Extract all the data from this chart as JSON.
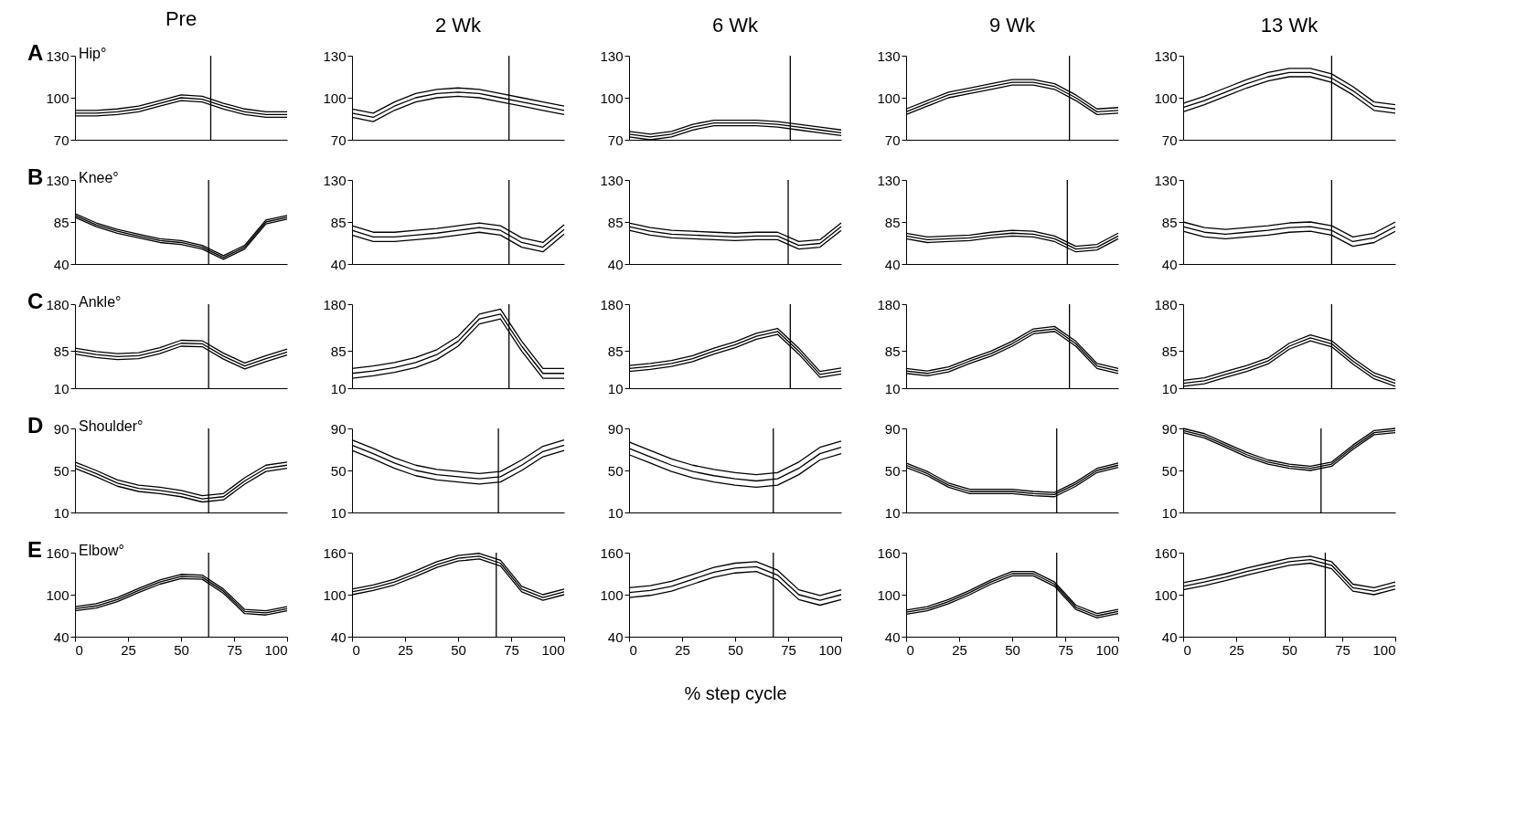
{
  "chart_data": [
    {
      "type": "line",
      "title": "Pre",
      "annotations": [
        "A",
        "Hip°"
      ],
      "xlim": [
        0,
        100
      ],
      "xticks": [
        0,
        25,
        50,
        75,
        100
      ],
      "ylim": [
        70,
        130
      ],
      "yticks": [
        70,
        100,
        130
      ],
      "tick_labels": "y",
      "ref_lines": [
        {
          "axis": "x",
          "value": 64,
          "color": "#000000"
        }
      ],
      "x": [
        0,
        10,
        20,
        30,
        40,
        50,
        60,
        70,
        80,
        90,
        100
      ],
      "series": [
        {
          "color": "#000000",
          "values": [
            91,
            91,
            92,
            94,
            98,
            102,
            101,
            96,
            92,
            90,
            90
          ]
        },
        {
          "color": "#000000",
          "values": [
            89,
            89,
            90,
            92,
            96,
            100,
            99,
            94,
            90,
            88,
            88
          ]
        },
        {
          "color": "#000000",
          "values": [
            87,
            87,
            88,
            90,
            94,
            98,
            97,
            92,
            88,
            86,
            86
          ]
        }
      ]
    },
    {
      "type": "line",
      "title": "2 Wk",
      "xlim": [
        0,
        100
      ],
      "xticks": [
        0,
        25,
        50,
        75,
        100
      ],
      "ylim": [
        70,
        130
      ],
      "yticks": [
        70,
        100,
        130
      ],
      "tick_labels": "y",
      "ref_lines": [
        {
          "axis": "x",
          "value": 74,
          "color": "#000000"
        }
      ],
      "x": [
        0,
        10,
        20,
        30,
        40,
        50,
        60,
        70,
        80,
        90,
        100
      ],
      "series": [
        {
          "color": "#000000",
          "values": [
            92,
            89,
            97,
            103,
            106,
            107,
            106,
            103,
            100,
            97,
            94
          ]
        },
        {
          "color": "#000000",
          "values": [
            89,
            86,
            94,
            100,
            103,
            104,
            103,
            100,
            97,
            94,
            91
          ]
        },
        {
          "color": "#000000",
          "values": [
            86,
            83,
            91,
            97,
            100,
            101,
            100,
            97,
            94,
            91,
            88
          ]
        }
      ]
    },
    {
      "type": "line",
      "title": "6 Wk",
      "xlim": [
        0,
        100
      ],
      "xticks": [
        0,
        25,
        50,
        75,
        100
      ],
      "ylim": [
        70,
        130
      ],
      "yticks": [
        70,
        100,
        130
      ],
      "tick_labels": "y",
      "ref_lines": [
        {
          "axis": "x",
          "value": 76,
          "color": "#000000"
        }
      ],
      "x": [
        0,
        10,
        20,
        30,
        40,
        50,
        60,
        70,
        80,
        90,
        100
      ],
      "series": [
        {
          "color": "#000000",
          "values": [
            76,
            74,
            76,
            81,
            84,
            84,
            84,
            83,
            81,
            79,
            77
          ]
        },
        {
          "color": "#000000",
          "values": [
            74,
            72,
            74,
            79,
            82,
            82,
            82,
            81,
            79,
            77,
            75
          ]
        },
        {
          "color": "#000000",
          "values": [
            72,
            70,
            72,
            77,
            80,
            80,
            80,
            79,
            77,
            75,
            73
          ]
        }
      ]
    },
    {
      "type": "line",
      "title": "9 Wk",
      "xlim": [
        0,
        100
      ],
      "xticks": [
        0,
        25,
        50,
        75,
        100
      ],
      "ylim": [
        70,
        130
      ],
      "yticks": [
        70,
        100,
        130
      ],
      "tick_labels": "y",
      "ref_lines": [
        {
          "axis": "x",
          "value": 77,
          "color": "#000000"
        }
      ],
      "x": [
        0,
        10,
        20,
        30,
        40,
        50,
        60,
        70,
        80,
        90,
        100
      ],
      "series": [
        {
          "color": "#000000",
          "values": [
            92,
            98,
            104,
            107,
            110,
            113,
            113,
            110,
            102,
            92,
            93
          ]
        },
        {
          "color": "#000000",
          "values": [
            90,
            96,
            102,
            105,
            108,
            111,
            111,
            108,
            100,
            90,
            91
          ]
        },
        {
          "color": "#000000",
          "values": [
            88,
            94,
            100,
            103,
            106,
            109,
            109,
            106,
            98,
            88,
            89
          ]
        }
      ]
    },
    {
      "type": "line",
      "title": "13 Wk",
      "xlim": [
        0,
        100
      ],
      "xticks": [
        0,
        25,
        50,
        75,
        100
      ],
      "ylim": [
        70,
        130
      ],
      "yticks": [
        70,
        100,
        130
      ],
      "tick_labels": "y",
      "ref_lines": [
        {
          "axis": "x",
          "value": 70,
          "color": "#000000"
        }
      ],
      "x": [
        0,
        10,
        20,
        30,
        40,
        50,
        60,
        70,
        80,
        90,
        100
      ],
      "series": [
        {
          "color": "#000000",
          "values": [
            96,
            101,
            107,
            113,
            118,
            121,
            121,
            117,
            108,
            97,
            95
          ]
        },
        {
          "color": "#000000",
          "values": [
            93,
            98,
            104,
            110,
            115,
            118,
            118,
            114,
            105,
            94,
            92
          ]
        },
        {
          "color": "#000000",
          "values": [
            90,
            95,
            101,
            107,
            112,
            115,
            115,
            111,
            102,
            91,
            89
          ]
        }
      ]
    },
    {
      "type": "line",
      "annotations": [
        "B",
        "Knee°"
      ],
      "xlim": [
        0,
        100
      ],
      "xticks": [
        0,
        25,
        50,
        75,
        100
      ],
      "ylim": [
        40,
        130
      ],
      "yticks": [
        40,
        85,
        130
      ],
      "tick_labels": "y",
      "ref_lines": [
        {
          "axis": "x",
          "value": 63,
          "color": "#000000"
        }
      ],
      "x": [
        0,
        10,
        20,
        30,
        40,
        50,
        60,
        70,
        80,
        90,
        100
      ],
      "series": [
        {
          "color": "#000000",
          "values": [
            94,
            84,
            77,
            72,
            67,
            65,
            60,
            49,
            60,
            87,
            92
          ]
        },
        {
          "color": "#000000",
          "values": [
            92,
            82,
            75,
            70,
            65,
            63,
            58,
            47,
            58,
            85,
            90
          ]
        },
        {
          "color": "#000000",
          "values": [
            90,
            80,
            73,
            68,
            63,
            61,
            56,
            45,
            56,
            83,
            88
          ]
        }
      ]
    },
    {
      "type": "line",
      "xlim": [
        0,
        100
      ],
      "xticks": [
        0,
        25,
        50,
        75,
        100
      ],
      "ylim": [
        40,
        130
      ],
      "yticks": [
        40,
        85,
        130
      ],
      "tick_labels": "y",
      "ref_lines": [
        {
          "axis": "x",
          "value": 74,
          "color": "#000000"
        }
      ],
      "x": [
        0,
        10,
        20,
        30,
        40,
        50,
        60,
        70,
        80,
        90,
        100
      ],
      "series": [
        {
          "color": "#000000",
          "values": [
            81,
            74,
            74,
            76,
            78,
            81,
            84,
            81,
            68,
            63,
            82
          ]
        },
        {
          "color": "#000000",
          "values": [
            76,
            69,
            69,
            71,
            73,
            76,
            79,
            76,
            63,
            58,
            77
          ]
        },
        {
          "color": "#000000",
          "values": [
            71,
            64,
            64,
            66,
            68,
            71,
            74,
            71,
            58,
            53,
            72
          ]
        }
      ]
    },
    {
      "type": "line",
      "xlim": [
        0,
        100
      ],
      "xticks": [
        0,
        25,
        50,
        75,
        100
      ],
      "ylim": [
        40,
        130
      ],
      "yticks": [
        40,
        85,
        130
      ],
      "tick_labels": "y",
      "ref_lines": [
        {
          "axis": "x",
          "value": 75,
          "color": "#000000"
        }
      ],
      "x": [
        0,
        10,
        20,
        30,
        40,
        50,
        60,
        70,
        80,
        90,
        100
      ],
      "series": [
        {
          "color": "#000000",
          "values": [
            84,
            79,
            76,
            75,
            74,
            73,
            74,
            74,
            64,
            66,
            84
          ]
        },
        {
          "color": "#000000",
          "values": [
            80,
            75,
            72,
            71,
            70,
            69,
            70,
            70,
            60,
            62,
            80
          ]
        },
        {
          "color": "#000000",
          "values": [
            76,
            71,
            68,
            67,
            66,
            65,
            66,
            66,
            56,
            58,
            76
          ]
        }
      ]
    },
    {
      "type": "line",
      "xlim": [
        0,
        100
      ],
      "xticks": [
        0,
        25,
        50,
        75,
        100
      ],
      "ylim": [
        40,
        130
      ],
      "yticks": [
        40,
        85,
        130
      ],
      "tick_labels": "y",
      "ref_lines": [
        {
          "axis": "x",
          "value": 76,
          "color": "#000000"
        }
      ],
      "x": [
        0,
        10,
        20,
        30,
        40,
        50,
        60,
        70,
        80,
        90,
        100
      ],
      "series": [
        {
          "color": "#000000",
          "values": [
            73,
            69,
            70,
            71,
            74,
            76,
            75,
            70,
            59,
            61,
            73
          ]
        },
        {
          "color": "#000000",
          "values": [
            70,
            66,
            67,
            68,
            71,
            73,
            72,
            67,
            56,
            58,
            70
          ]
        },
        {
          "color": "#000000",
          "values": [
            67,
            63,
            64,
            65,
            68,
            70,
            69,
            64,
            53,
            55,
            67
          ]
        }
      ]
    },
    {
      "type": "line",
      "xlim": [
        0,
        100
      ],
      "xticks": [
        0,
        25,
        50,
        75,
        100
      ],
      "ylim": [
        40,
        130
      ],
      "yticks": [
        40,
        85,
        130
      ],
      "tick_labels": "y",
      "ref_lines": [
        {
          "axis": "x",
          "value": 70,
          "color": "#000000"
        }
      ],
      "x": [
        0,
        10,
        20,
        30,
        40,
        50,
        60,
        70,
        80,
        90,
        100
      ],
      "series": [
        {
          "color": "#000000",
          "values": [
            85,
            79,
            77,
            79,
            81,
            84,
            85,
            81,
            69,
            73,
            85
          ]
        },
        {
          "color": "#000000",
          "values": [
            80,
            74,
            72,
            74,
            76,
            79,
            80,
            76,
            64,
            68,
            80
          ]
        },
        {
          "color": "#000000",
          "values": [
            75,
            69,
            67,
            69,
            71,
            74,
            75,
            71,
            59,
            63,
            75
          ]
        }
      ]
    },
    {
      "type": "line",
      "annotations": [
        "C",
        "Ankle°"
      ],
      "xlim": [
        0,
        100
      ],
      "xticks": [
        0,
        25,
        50,
        75,
        100
      ],
      "ylim": [
        10,
        180
      ],
      "yticks": [
        10,
        85,
        180
      ],
      "tick_labels": "y",
      "ref_lines": [
        {
          "axis": "x",
          "value": 63,
          "color": "#000000"
        }
      ],
      "x": [
        0,
        10,
        20,
        30,
        40,
        50,
        60,
        70,
        80,
        90,
        100
      ],
      "series": [
        {
          "color": "#000000",
          "values": [
            91,
            84,
            80,
            82,
            92,
            107,
            106,
            81,
            61,
            76,
            89
          ]
        },
        {
          "color": "#000000",
          "values": [
            85,
            78,
            74,
            76,
            86,
            101,
            100,
            75,
            55,
            70,
            83
          ]
        },
        {
          "color": "#000000",
          "values": [
            79,
            72,
            68,
            70,
            80,
            95,
            94,
            69,
            49,
            64,
            77
          ]
        }
      ]
    },
    {
      "type": "line",
      "xlim": [
        0,
        100
      ],
      "xticks": [
        0,
        25,
        50,
        75,
        100
      ],
      "ylim": [
        10,
        180
      ],
      "yticks": [
        10,
        85,
        180
      ],
      "tick_labels": "y",
      "ref_lines": [
        {
          "axis": "x",
          "value": 74,
          "color": "#000000"
        }
      ],
      "x": [
        0,
        10,
        20,
        30,
        40,
        50,
        60,
        70,
        80,
        90,
        100
      ],
      "series": [
        {
          "color": "#000000",
          "values": [
            50,
            55,
            62,
            72,
            88,
            115,
            160,
            170,
            105,
            50,
            50
          ]
        },
        {
          "color": "#000000",
          "values": [
            40,
            45,
            52,
            62,
            78,
            105,
            150,
            160,
            95,
            40,
            40
          ]
        },
        {
          "color": "#000000",
          "values": [
            30,
            35,
            42,
            52,
            68,
            95,
            140,
            150,
            85,
            30,
            30
          ]
        }
      ]
    },
    {
      "type": "line",
      "xlim": [
        0,
        100
      ],
      "xticks": [
        0,
        25,
        50,
        75,
        100
      ],
      "ylim": [
        10,
        180
      ],
      "yticks": [
        10,
        85,
        180
      ],
      "tick_labels": "y",
      "ref_lines": [
        {
          "axis": "x",
          "value": 76,
          "color": "#000000"
        }
      ],
      "x": [
        0,
        10,
        20,
        30,
        40,
        50,
        60,
        70,
        80,
        90,
        100
      ],
      "series": [
        {
          "color": "#000000",
          "values": [
            56,
            60,
            66,
            76,
            91,
            104,
            121,
            131,
            91,
            44,
            51
          ]
        },
        {
          "color": "#000000",
          "values": [
            50,
            54,
            60,
            70,
            85,
            98,
            115,
            125,
            85,
            38,
            45
          ]
        },
        {
          "color": "#000000",
          "values": [
            44,
            48,
            54,
            64,
            79,
            92,
            109,
            119,
            79,
            32,
            39
          ]
        }
      ]
    },
    {
      "type": "line",
      "xlim": [
        0,
        100
      ],
      "xticks": [
        0,
        25,
        50,
        75,
        100
      ],
      "ylim": [
        10,
        180
      ],
      "yticks": [
        10,
        85,
        180
      ],
      "tick_labels": "y",
      "ref_lines": [
        {
          "axis": "x",
          "value": 77,
          "color": "#000000"
        }
      ],
      "x": [
        0,
        10,
        20,
        30,
        40,
        50,
        60,
        70,
        80,
        90,
        100
      ],
      "series": [
        {
          "color": "#000000",
          "values": [
            50,
            45,
            53,
            70,
            85,
            105,
            130,
            135,
            105,
            60,
            50
          ]
        },
        {
          "color": "#000000",
          "values": [
            45,
            40,
            48,
            65,
            80,
            100,
            125,
            130,
            100,
            55,
            45
          ]
        },
        {
          "color": "#000000",
          "values": [
            40,
            35,
            43,
            60,
            75,
            95,
            120,
            125,
            95,
            50,
            40
          ]
        }
      ]
    },
    {
      "type": "line",
      "xlim": [
        0,
        100
      ],
      "xticks": [
        0,
        25,
        50,
        75,
        100
      ],
      "ylim": [
        10,
        180
      ],
      "yticks": [
        10,
        85,
        180
      ],
      "tick_labels": "y",
      "ref_lines": [
        {
          "axis": "x",
          "value": 70,
          "color": "#000000"
        }
      ],
      "x": [
        0,
        10,
        20,
        30,
        40,
        50,
        60,
        70,
        80,
        90,
        100
      ],
      "series": [
        {
          "color": "#000000",
          "values": [
            26,
            31,
            44,
            56,
            71,
            101,
            118,
            106,
            71,
            41,
            26
          ]
        },
        {
          "color": "#000000",
          "values": [
            20,
            25,
            38,
            50,
            65,
            95,
            112,
            100,
            65,
            35,
            20
          ]
        },
        {
          "color": "#000000",
          "values": [
            14,
            19,
            32,
            44,
            59,
            89,
            106,
            94,
            59,
            29,
            14
          ]
        }
      ]
    },
    {
      "type": "line",
      "annotations": [
        "D",
        "Shoulder°"
      ],
      "xlim": [
        0,
        100
      ],
      "xticks": [
        0,
        25,
        50,
        75,
        100
      ],
      "ylim": [
        10,
        90
      ],
      "yticks": [
        10,
        50,
        90
      ],
      "tick_labels": "y",
      "ref_lines": [
        {
          "axis": "x",
          "value": 63,
          "color": "#000000"
        }
      ],
      "x": [
        0,
        10,
        20,
        30,
        40,
        50,
        60,
        70,
        80,
        90,
        100
      ],
      "series": [
        {
          "color": "#000000",
          "values": [
            58,
            50,
            41,
            36,
            34,
            31,
            26,
            28,
            43,
            55,
            58
          ]
        },
        {
          "color": "#000000",
          "values": [
            55,
            47,
            38,
            33,
            31,
            28,
            23,
            25,
            40,
            52,
            55
          ]
        },
        {
          "color": "#000000",
          "values": [
            52,
            44,
            35,
            30,
            28,
            25,
            20,
            22,
            37,
            49,
            52
          ]
        }
      ]
    },
    {
      "type": "line",
      "xlim": [
        0,
        100
      ],
      "xticks": [
        0,
        25,
        50,
        75,
        100
      ],
      "ylim": [
        10,
        90
      ],
      "yticks": [
        10,
        50,
        90
      ],
      "tick_labels": "y",
      "ref_lines": [
        {
          "axis": "x",
          "value": 69,
          "color": "#000000"
        }
      ],
      "x": [
        0,
        10,
        20,
        30,
        40,
        50,
        60,
        70,
        80,
        90,
        100
      ],
      "series": [
        {
          "color": "#000000",
          "values": [
            79,
            71,
            62,
            55,
            51,
            49,
            47,
            49,
            60,
            73,
            79
          ]
        },
        {
          "color": "#000000",
          "values": [
            74,
            66,
            57,
            50,
            46,
            44,
            42,
            44,
            55,
            68,
            74
          ]
        },
        {
          "color": "#000000",
          "values": [
            69,
            61,
            52,
            45,
            41,
            39,
            37,
            39,
            50,
            63,
            69
          ]
        }
      ]
    },
    {
      "type": "line",
      "xlim": [
        0,
        100
      ],
      "xticks": [
        0,
        25,
        50,
        75,
        100
      ],
      "ylim": [
        10,
        90
      ],
      "yticks": [
        10,
        50,
        90
      ],
      "tick_labels": "y",
      "ref_lines": [
        {
          "axis": "x",
          "value": 68,
          "color": "#000000"
        }
      ],
      "x": [
        0,
        10,
        20,
        30,
        40,
        50,
        60,
        70,
        80,
        90,
        100
      ],
      "series": [
        {
          "color": "#000000",
          "values": [
            77,
            69,
            61,
            55,
            51,
            48,
            46,
            48,
            58,
            72,
            78
          ]
        },
        {
          "color": "#000000",
          "values": [
            71,
            63,
            55,
            49,
            45,
            42,
            40,
            42,
            52,
            66,
            72
          ]
        },
        {
          "color": "#000000",
          "values": [
            65,
            57,
            49,
            43,
            39,
            36,
            34,
            36,
            46,
            60,
            66
          ]
        }
      ]
    },
    {
      "type": "line",
      "xlim": [
        0,
        100
      ],
      "xticks": [
        0,
        25,
        50,
        75,
        100
      ],
      "ylim": [
        10,
        90
      ],
      "yticks": [
        10,
        50,
        90
      ],
      "tick_labels": "y",
      "ref_lines": [
        {
          "axis": "x",
          "value": 71,
          "color": "#000000"
        }
      ],
      "x": [
        0,
        10,
        20,
        30,
        40,
        50,
        60,
        70,
        80,
        90,
        100
      ],
      "series": [
        {
          "color": "#000000",
          "values": [
            57,
            49,
            38,
            32,
            32,
            32,
            30,
            29,
            39,
            52,
            57
          ]
        },
        {
          "color": "#000000",
          "values": [
            55,
            47,
            36,
            30,
            30,
            30,
            28,
            27,
            37,
            50,
            55
          ]
        },
        {
          "color": "#000000",
          "values": [
            53,
            45,
            34,
            28,
            28,
            28,
            26,
            25,
            35,
            48,
            53
          ]
        }
      ]
    },
    {
      "type": "line",
      "xlim": [
        0,
        100
      ],
      "xticks": [
        0,
        25,
        50,
        75,
        100
      ],
      "ylim": [
        10,
        90
      ],
      "yticks": [
        10,
        50,
        90
      ],
      "tick_labels": "y",
      "ref_lines": [
        {
          "axis": "x",
          "value": 65,
          "color": "#000000"
        }
      ],
      "x": [
        0,
        10,
        20,
        30,
        40,
        50,
        60,
        70,
        80,
        90,
        100
      ],
      "series": [
        {
          "color": "#000000",
          "values": [
            90,
            85,
            76,
            67,
            60,
            56,
            54,
            58,
            74,
            88,
            90
          ]
        },
        {
          "color": "#000000",
          "values": [
            88,
            83,
            74,
            65,
            58,
            54,
            52,
            56,
            72,
            86,
            88
          ]
        },
        {
          "color": "#000000",
          "values": [
            86,
            81,
            72,
            63,
            56,
            52,
            50,
            54,
            70,
            84,
            86
          ]
        }
      ]
    },
    {
      "type": "line",
      "annotations": [
        "E",
        "Elbow°"
      ],
      "xlim": [
        0,
        100
      ],
      "xticks": [
        0,
        25,
        50,
        75,
        100
      ],
      "ylim": [
        40,
        160
      ],
      "yticks": [
        40,
        100,
        160
      ],
      "ref_lines": [
        {
          "axis": "x",
          "value": 63,
          "color": "#000000"
        }
      ],
      "x": [
        0,
        10,
        20,
        30,
        40,
        50,
        60,
        70,
        80,
        90,
        100
      ],
      "series": [
        {
          "color": "#000000",
          "values": [
            83,
            87,
            96,
            109,
            121,
            129,
            128,
            108,
            79,
            77,
            83
          ]
        },
        {
          "color": "#000000",
          "values": [
            80,
            84,
            93,
            106,
            118,
            126,
            125,
            105,
            76,
            74,
            80
          ]
        },
        {
          "color": "#000000",
          "values": [
            77,
            81,
            90,
            103,
            115,
            123,
            122,
            102,
            73,
            71,
            77
          ]
        }
      ]
    },
    {
      "type": "line",
      "xlim": [
        0,
        100
      ],
      "xticks": [
        0,
        25,
        50,
        75,
        100
      ],
      "ylim": [
        40,
        160
      ],
      "yticks": [
        40,
        100,
        160
      ],
      "ref_lines": [
        {
          "axis": "x",
          "value": 68,
          "color": "#000000"
        }
      ],
      "x": [
        0,
        10,
        20,
        30,
        40,
        50,
        60,
        70,
        80,
        90,
        100
      ],
      "series": [
        {
          "color": "#000000",
          "values": [
            108,
            114,
            122,
            134,
            147,
            156,
            159,
            149,
            112,
            100,
            108
          ]
        },
        {
          "color": "#000000",
          "values": [
            104,
            110,
            118,
            130,
            143,
            152,
            155,
            145,
            108,
            96,
            104
          ]
        },
        {
          "color": "#000000",
          "values": [
            100,
            106,
            114,
            126,
            139,
            148,
            151,
            141,
            104,
            92,
            100
          ]
        }
      ]
    },
    {
      "type": "line",
      "xlabel": "% step cycle",
      "xlim": [
        0,
        100
      ],
      "xticks": [
        0,
        25,
        50,
        75,
        100
      ],
      "ylim": [
        40,
        160
      ],
      "yticks": [
        40,
        100,
        160
      ],
      "ref_lines": [
        {
          "axis": "x",
          "value": 68,
          "color": "#000000"
        }
      ],
      "x": [
        0,
        10,
        20,
        30,
        40,
        50,
        60,
        70,
        80,
        90,
        100
      ],
      "series": [
        {
          "color": "#000000",
          "values": [
            110,
            113,
            119,
            129,
            139,
            145,
            147,
            135,
            107,
            99,
            107
          ]
        },
        {
          "color": "#000000",
          "values": [
            103,
            106,
            112,
            122,
            132,
            138,
            140,
            128,
            100,
            92,
            100
          ]
        },
        {
          "color": "#000000",
          "values": [
            96,
            99,
            105,
            115,
            125,
            131,
            133,
            121,
            93,
            85,
            93
          ]
        }
      ]
    },
    {
      "type": "line",
      "xlim": [
        0,
        100
      ],
      "xticks": [
        0,
        25,
        50,
        75,
        100
      ],
      "ylim": [
        40,
        160
      ],
      "yticks": [
        40,
        100,
        160
      ],
      "ref_lines": [
        {
          "axis": "x",
          "value": 71,
          "color": "#000000"
        }
      ],
      "x": [
        0,
        10,
        20,
        30,
        40,
        50,
        60,
        70,
        80,
        90,
        100
      ],
      "series": [
        {
          "color": "#000000",
          "values": [
            78,
            83,
            93,
            106,
            121,
            133,
            133,
            118,
            85,
            73,
            79
          ]
        },
        {
          "color": "#000000",
          "values": [
            75,
            80,
            90,
            103,
            118,
            130,
            130,
            115,
            82,
            70,
            76
          ]
        },
        {
          "color": "#000000",
          "values": [
            72,
            77,
            87,
            100,
            115,
            127,
            127,
            112,
            79,
            67,
            73
          ]
        }
      ]
    },
    {
      "type": "line",
      "xlim": [
        0,
        100
      ],
      "xticks": [
        0,
        25,
        50,
        75,
        100
      ],
      "ylim": [
        40,
        160
      ],
      "yticks": [
        40,
        100,
        160
      ],
      "ref_lines": [
        {
          "axis": "x",
          "value": 67,
          "color": "#000000"
        }
      ],
      "x": [
        0,
        10,
        20,
        30,
        40,
        50,
        60,
        70,
        80,
        90,
        100
      ],
      "series": [
        {
          "color": "#000000",
          "values": [
            117,
            123,
            130,
            138,
            145,
            152,
            155,
            147,
            115,
            110,
            118
          ]
        },
        {
          "color": "#000000",
          "values": [
            112,
            118,
            125,
            133,
            140,
            147,
            150,
            142,
            110,
            105,
            113
          ]
        },
        {
          "color": "#000000",
          "values": [
            107,
            113,
            120,
            128,
            135,
            142,
            145,
            137,
            105,
            100,
            108
          ]
        }
      ]
    }
  ]
}
